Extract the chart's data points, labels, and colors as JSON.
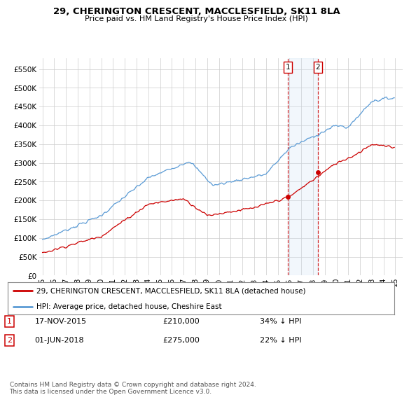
{
  "title": "29, CHERINGTON CRESCENT, MACCLESFIELD, SK11 8LA",
  "subtitle": "Price paid vs. HM Land Registry's House Price Index (HPI)",
  "ylim": [
    0,
    580000
  ],
  "yticks": [
    0,
    50000,
    100000,
    150000,
    200000,
    250000,
    300000,
    350000,
    400000,
    450000,
    500000,
    550000
  ],
  "ytick_labels": [
    "£0",
    "£50K",
    "£100K",
    "£150K",
    "£200K",
    "£250K",
    "£300K",
    "£350K",
    "£400K",
    "£450K",
    "£500K",
    "£550K"
  ],
  "hpi_color": "#5b9bd5",
  "price_color": "#cc0000",
  "shading_color": "#cce0f5",
  "marker1_date_x": 2015.88,
  "marker1_price": 210000,
  "marker1_label": "1",
  "marker1_date_str": "17-NOV-2015",
  "marker1_price_str": "£210,000",
  "marker1_hpi_str": "34% ↓ HPI",
  "marker2_date_x": 2018.42,
  "marker2_price": 275000,
  "marker2_label": "2",
  "marker2_date_str": "01-JUN-2018",
  "marker2_price_str": "£275,000",
  "marker2_hpi_str": "22% ↓ HPI",
  "legend_line1": "29, CHERINGTON CRESCENT, MACCLESFIELD, SK11 8LA (detached house)",
  "legend_line2": "HPI: Average price, detached house, Cheshire East",
  "footnote": "Contains HM Land Registry data © Crown copyright and database right 2024.\nThis data is licensed under the Open Government Licence v3.0.",
  "bg_color": "#ffffff",
  "grid_color": "#cccccc",
  "xlim_left": 1994.7,
  "xlim_right": 2025.6
}
